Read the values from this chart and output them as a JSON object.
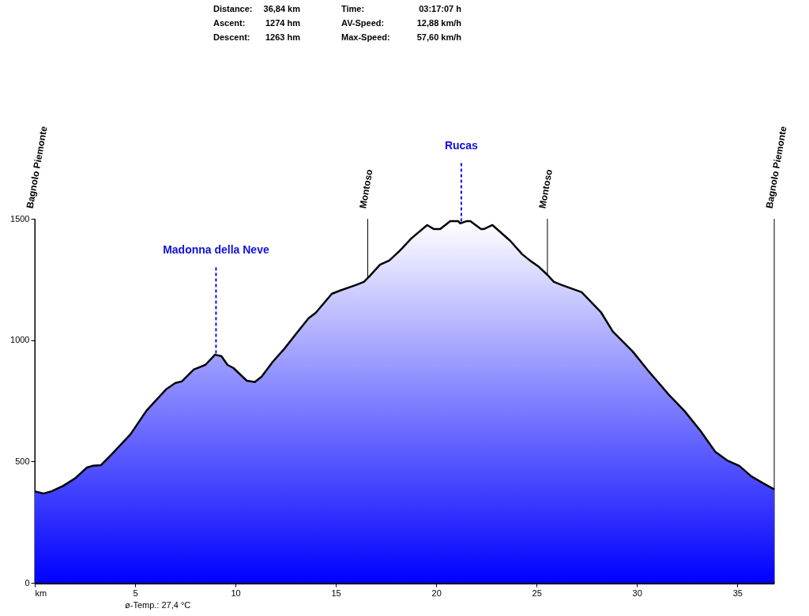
{
  "chart_data": {
    "type": "area",
    "x": [
      0,
      0.43,
      0.83,
      1.42,
      2.0,
      2.6,
      2.88,
      3.3,
      3.8,
      4.77,
      5.56,
      6.54,
      7.0,
      7.33,
      7.92,
      8.5,
      8.98,
      9.3,
      9.6,
      9.9,
      10.56,
      10.96,
      11.3,
      11.86,
      12.45,
      13.04,
      13.64,
      14.0,
      14.8,
      15.2,
      16.0,
      16.4,
      16.71,
      17.2,
      17.66,
      18.17,
      18.76,
      19.55,
      19.87,
      20.2,
      20.7,
      21.1,
      21.2,
      21.5,
      21.7,
      22.23,
      22.39,
      22.8,
      23.69,
      24.28,
      24.67,
      25.07,
      25.54,
      25.86,
      26.25,
      27.24,
      28.2,
      28.8,
      29.79,
      30.58,
      31.6,
      32.36,
      33.15,
      33.9,
      34.5,
      35.1,
      35.7,
      36.3,
      36.84
    ],
    "series": [
      {
        "color": "#0000ff",
        "values": [
          377,
          368,
          377,
          400,
          430,
          475,
          482,
          485,
          527,
          612,
          709,
          797,
          823,
          830,
          879,
          898,
          940,
          934,
          898,
          885,
          833,
          827,
          849,
          911,
          966,
          1028,
          1090,
          1113,
          1191,
          1204,
          1227,
          1240,
          1266,
          1311,
          1328,
          1367,
          1419,
          1474,
          1458,
          1458,
          1490,
          1490,
          1481,
          1490,
          1490,
          1458,
          1458,
          1474,
          1409,
          1354,
          1328,
          1305,
          1269,
          1240,
          1227,
          1198,
          1116,
          1035,
          953,
          872,
          774,
          709,
          628,
          540,
          504,
          482,
          439,
          410,
          385
        ]
      }
    ],
    "xlim": [
      0,
      36.84
    ],
    "xticks": [
      {
        "value": 0,
        "label": "km"
      },
      5,
      10,
      15,
      20,
      25,
      30,
      35
    ],
    "ylim": [
      0,
      1500
    ],
    "yticks": [
      0,
      500,
      1000,
      1500
    ],
    "grid": false,
    "ref_lines": [
      {
        "axis": "x",
        "value": 0,
        "label": "Bagnolo Piemonte",
        "color": "#000000",
        "line_style": "solid"
      },
      {
        "axis": "x",
        "value": 9.03,
        "label": "Madonna della Neve",
        "color": "#1010e0",
        "line_style": "dashed"
      },
      {
        "axis": "x",
        "value": 16.59,
        "label": "Montoso",
        "color": "#000000",
        "line_style": "solid"
      },
      {
        "axis": "x",
        "value": 21.25,
        "label": "Rucas",
        "color": "#1010e0",
        "line_style": "dashed"
      },
      {
        "axis": "x",
        "value": 25.54,
        "label": "Montoso",
        "color": "#000000",
        "line_style": "solid"
      },
      {
        "axis": "x",
        "value": 36.84,
        "label": "Bagnolo Piemonte",
        "color": "#000000",
        "line_style": "solid"
      }
    ],
    "annotations": [
      "Distance:",
      "36,84 km",
      "Time:",
      "03:17:07 h",
      "Ascent:",
      "1274 hm",
      "AV-Speed:",
      "12,88 km/h",
      "Descent:",
      "1263 hm",
      "Max-Speed:",
      "57,60 km/h",
      "ø-Temp.: 27,4 °C"
    ]
  }
}
